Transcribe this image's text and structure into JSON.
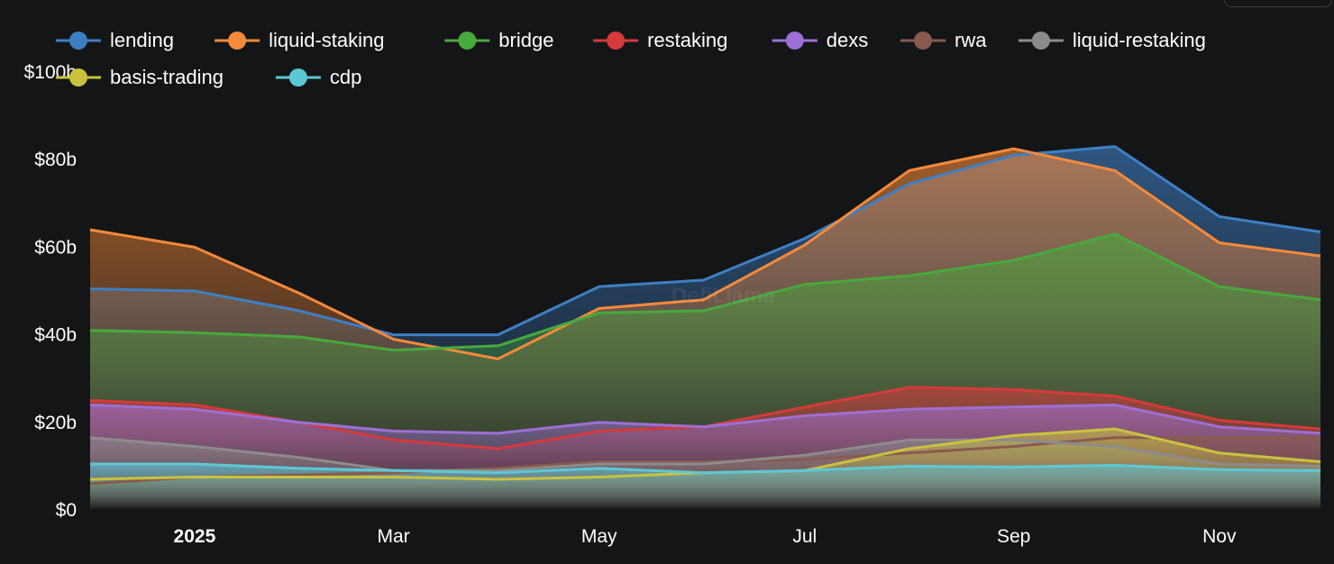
{
  "chart_data": {
    "type": "area",
    "x": [
      "2024-12-01",
      "2025-01-01",
      "2025-02-01",
      "2025-03-01",
      "2025-04-01",
      "2025-05-01",
      "2025-06-01",
      "2025-07-01",
      "2025-08-01",
      "2025-09-01",
      "2025-10-01",
      "2025-11-01",
      "2025-12-01"
    ],
    "x_tick_labels": [
      {
        "date": "2025-01-01",
        "label": "2025",
        "bold": true
      },
      {
        "date": "2025-03-01",
        "label": "Mar",
        "bold": false
      },
      {
        "date": "2025-05-01",
        "label": "May",
        "bold": false
      },
      {
        "date": "2025-07-01",
        "label": "Jul",
        "bold": false
      },
      {
        "date": "2025-09-01",
        "label": "Sep",
        "bold": false
      },
      {
        "date": "2025-11-01",
        "label": "Nov",
        "bold": false
      }
    ],
    "y_ticks": [
      {
        "value": 0,
        "label": "$0"
      },
      {
        "value": 20,
        "label": "$20b"
      },
      {
        "value": 40,
        "label": "$40b"
      },
      {
        "value": 60,
        "label": "$60b"
      },
      {
        "value": 80,
        "label": "$80b"
      },
      {
        "value": 100,
        "label": "$100b"
      }
    ],
    "ylim": [
      0,
      100
    ],
    "y_unit": "billion USD",
    "legend_placement": "top",
    "grid": false,
    "watermark": "DefiLlama",
    "series": [
      {
        "name": "lending",
        "color": "#3e7fc4",
        "values": [
          50.5,
          50,
          45.5,
          40,
          40,
          51,
          52.5,
          62,
          74.5,
          81,
          83,
          67,
          63.5
        ]
      },
      {
        "name": "liquid-staking",
        "color": "#f58a3a",
        "values": [
          64,
          60,
          49.5,
          39,
          34.5,
          46,
          48,
          60.5,
          77.5,
          82.5,
          77.5,
          61,
          58
        ]
      },
      {
        "name": "bridge",
        "color": "#48a93c",
        "values": [
          41,
          40.5,
          39.5,
          36.5,
          37.5,
          45,
          45.5,
          51.5,
          53.5,
          57,
          63,
          51,
          48
        ]
      },
      {
        "name": "restaking",
        "color": "#d63a3a",
        "values": [
          25,
          24,
          20,
          16,
          14,
          18,
          19,
          23.5,
          28,
          27.5,
          26,
          20.5,
          18.5
        ]
      },
      {
        "name": "dexs",
        "color": "#9e6fd6",
        "values": [
          24,
          23,
          20,
          18,
          17.5,
          20,
          19,
          21.5,
          23,
          23.5,
          24,
          19,
          17.5
        ]
      },
      {
        "name": "rwa",
        "color": "#8a5a4e",
        "values": [
          6,
          7.5,
          8,
          8.5,
          9.5,
          11,
          11,
          11.5,
          13,
          14.5,
          16.5,
          16.5,
          16.5
        ]
      },
      {
        "name": "liquid-restaking",
        "color": "#8c8c8c",
        "values": [
          16.5,
          14.5,
          12,
          9,
          9,
          10.5,
          10.5,
          12.5,
          16,
          16,
          14.5,
          10.5,
          10
        ]
      },
      {
        "name": "basis-trading",
        "color": "#c9c23f",
        "values": [
          7,
          7.5,
          7.5,
          7.5,
          7,
          7.5,
          8.5,
          9,
          14,
          17,
          18.5,
          13,
          11
        ]
      },
      {
        "name": "cdp",
        "color": "#5cc8d6",
        "values": [
          10.5,
          10.5,
          9.5,
          9,
          8.5,
          9.5,
          8.5,
          9,
          10,
          9.8,
          10.2,
          9.2,
          9
        ]
      }
    ]
  }
}
